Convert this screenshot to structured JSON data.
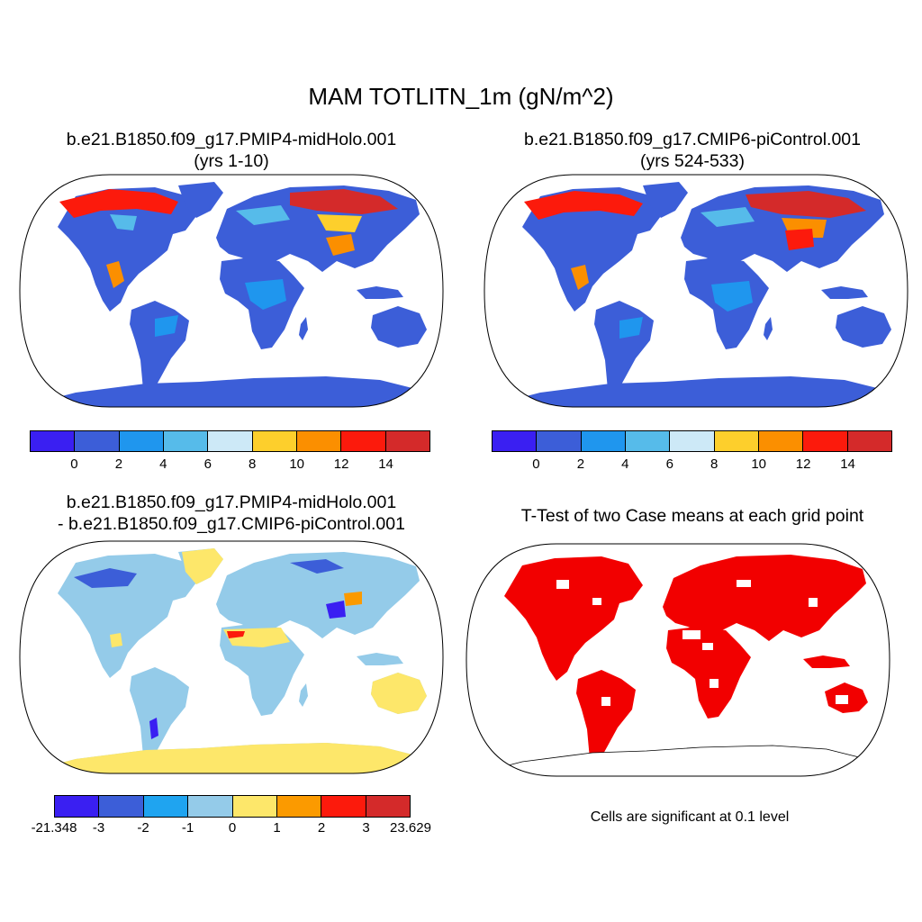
{
  "title": "MAM TOTLITN_1m (gN/m^2)",
  "panels": [
    {
      "title_line1": "b.e21.B1850.f09_g17.PMIP4-midHolo.001",
      "title_line2": "(yrs 1-10)"
    },
    {
      "title_line1": "b.e21.B1850.f09_g17.CMIP6-piControl.001",
      "title_line2": "(yrs 524-533)"
    },
    {
      "title_line1": "b.e21.B1850.f09_g17.PMIP4-midHolo.001",
      "title_line2": "- b.e21.B1850.f09_g17.CMIP6-piControl.001"
    },
    {
      "title_line1": "T-Test of two Case means at each grid point"
    }
  ],
  "colorbar_case": {
    "colors": [
      "#3a1ff2",
      "#3c5ed8",
      "#1f96ee",
      "#56bbea",
      "#cde9f7",
      "#fdcf2c",
      "#fb8f00",
      "#fc1a0c",
      "#d42a2a"
    ],
    "labels": [
      "0",
      "2",
      "4",
      "6",
      "8",
      "10",
      "12",
      "14"
    ]
  },
  "colorbar_diff": {
    "colors": [
      "#3a1ff2",
      "#3c5ed8",
      "#1fa4f0",
      "#94cbe9",
      "#fde76a",
      "#fb9a00",
      "#fc1a0c",
      "#d42a2a"
    ],
    "labels": [
      "-21.348",
      "-3",
      "-2",
      "-1",
      "0",
      "1",
      "2",
      "3",
      "23.629"
    ]
  },
  "significance_note": "Cells are significant at 0.1 level",
  "significance_color": "#f20000"
}
